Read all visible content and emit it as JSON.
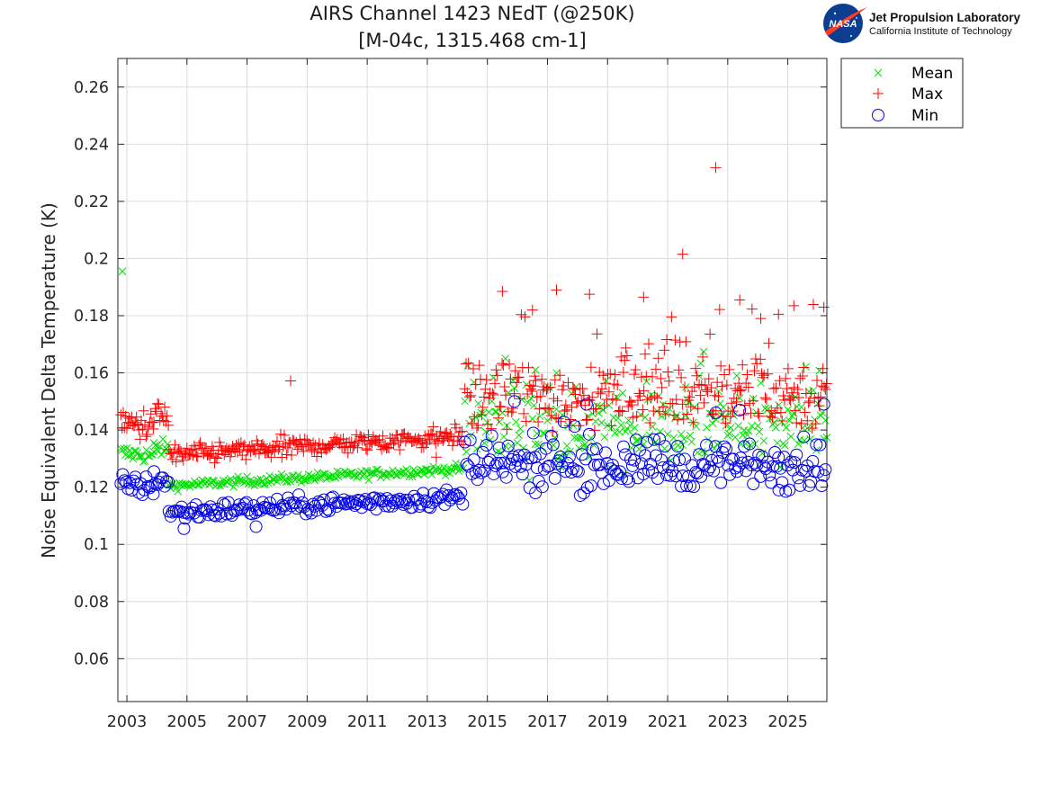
{
  "logo": {
    "badge_text": "NASA",
    "org_name": "Jet Propulsion Laboratory",
    "org_sub": "California Institute of Technology"
  },
  "chart_data": {
    "type": "scatter",
    "title": "AIRS Channel 1423 NEdT (@250K)",
    "subtitle": "[M-04c, 1315.468 cm-1]",
    "xlabel": "",
    "ylabel": "Noise Equivalent Delta Temperature (K)",
    "xlim": [
      2002.7,
      2026.3
    ],
    "ylim": [
      0.045,
      0.27
    ],
    "x_ticks": [
      2003,
      2005,
      2007,
      2009,
      2011,
      2013,
      2015,
      2017,
      2019,
      2021,
      2023,
      2025
    ],
    "y_ticks": [
      0.06,
      0.08,
      0.1,
      0.12,
      0.14,
      0.16,
      0.18,
      0.2,
      0.22,
      0.24,
      0.26
    ],
    "y_tick_labels": [
      "0.06",
      "0.08",
      "0.1",
      "0.12",
      "0.14",
      "0.16",
      "0.18",
      "0.2",
      "0.22",
      "0.24",
      "0.26"
    ],
    "grid": true,
    "legend_position": "outside-top-right",
    "series": [
      {
        "name": "Mean",
        "marker": "x",
        "color": "#00e000",
        "segments": [
          {
            "x0": 2002.8,
            "x1": 2003.9,
            "base0": 0.132,
            "base1": 0.131,
            "noise": 0.0015,
            "step": 0.05
          },
          {
            "x0": 2003.9,
            "x1": 2004.4,
            "base0": 0.134,
            "base1": 0.133,
            "noise": 0.0015,
            "step": 0.05
          },
          {
            "x0": 2004.4,
            "x1": 2014.2,
            "base0": 0.1205,
            "base1": 0.1265,
            "noise": 0.0008,
            "step": 0.05
          },
          {
            "x0": 2014.25,
            "x1": 2026.3,
            "base0": 0.14,
            "base1": 0.141,
            "noise": 0.006,
            "step": 0.05
          }
        ],
        "outliers": [
          {
            "x": 2002.85,
            "y": 0.1955
          },
          {
            "x": 2015.6,
            "y": 0.165
          },
          {
            "x": 2016.6,
            "y": 0.161
          },
          {
            "x": 2017.3,
            "y": 0.16
          },
          {
            "x": 2021.6,
            "y": 0.155
          }
        ]
      },
      {
        "name": "Max",
        "marker": "+",
        "color": "#ff0000",
        "segments": [
          {
            "x0": 2002.8,
            "x1": 2003.9,
            "base0": 0.142,
            "base1": 0.142,
            "noise": 0.0025,
            "step": 0.04
          },
          {
            "x0": 2003.9,
            "x1": 2004.4,
            "base0": 0.145,
            "base1": 0.145,
            "noise": 0.0025,
            "step": 0.04
          },
          {
            "x0": 2004.4,
            "x1": 2014.2,
            "base0": 0.131,
            "base1": 0.138,
            "noise": 0.0018,
            "step": 0.04
          },
          {
            "x0": 2014.25,
            "x1": 2026.3,
            "base0": 0.151,
            "base1": 0.153,
            "noise": 0.006,
            "step": 0.04
          }
        ],
        "outliers": [
          {
            "x": 2008.45,
            "y": 0.1572
          },
          {
            "x": 2013.3,
            "y": 0.1305
          },
          {
            "x": 2015.5,
            "y": 0.1885
          },
          {
            "x": 2016.5,
            "y": 0.182
          },
          {
            "x": 2017.3,
            "y": 0.189
          },
          {
            "x": 2018.4,
            "y": 0.1875
          },
          {
            "x": 2020.2,
            "y": 0.1865
          },
          {
            "x": 2021.5,
            "y": 0.2015
          },
          {
            "x": 2022.6,
            "y": 0.2318
          },
          {
            "x": 2023.4,
            "y": 0.1855
          },
          {
            "x": 2024.1,
            "y": 0.179
          },
          {
            "x": 2025.2,
            "y": 0.1835
          },
          {
            "x": 2026.2,
            "y": 0.183
          }
        ]
      },
      {
        "name": "Min",
        "marker": "o",
        "color": "#0000e6",
        "segments": [
          {
            "x0": 2002.8,
            "x1": 2003.9,
            "base0": 0.121,
            "base1": 0.12,
            "noise": 0.0018,
            "step": 0.06
          },
          {
            "x0": 2003.9,
            "x1": 2004.4,
            "base0": 0.123,
            "base1": 0.122,
            "noise": 0.0015,
            "step": 0.06
          },
          {
            "x0": 2004.4,
            "x1": 2014.2,
            "base0": 0.111,
            "base1": 0.1165,
            "noise": 0.0015,
            "step": 0.06
          },
          {
            "x0": 2014.25,
            "x1": 2026.3,
            "base0": 0.127,
            "base1": 0.128,
            "noise": 0.004,
            "step": 0.06
          }
        ],
        "outliers": [
          {
            "x": 2004.9,
            "y": 0.1055
          },
          {
            "x": 2007.3,
            "y": 0.1062
          },
          {
            "x": 2016.6,
            "y": 0.118
          },
          {
            "x": 2024.7,
            "y": 0.119
          },
          {
            "x": 2015.9,
            "y": 0.15
          },
          {
            "x": 2018.3,
            "y": 0.149
          },
          {
            "x": 2022.6,
            "y": 0.146
          },
          {
            "x": 2023.4,
            "y": 0.147
          },
          {
            "x": 2026.2,
            "y": 0.149
          }
        ]
      }
    ]
  }
}
